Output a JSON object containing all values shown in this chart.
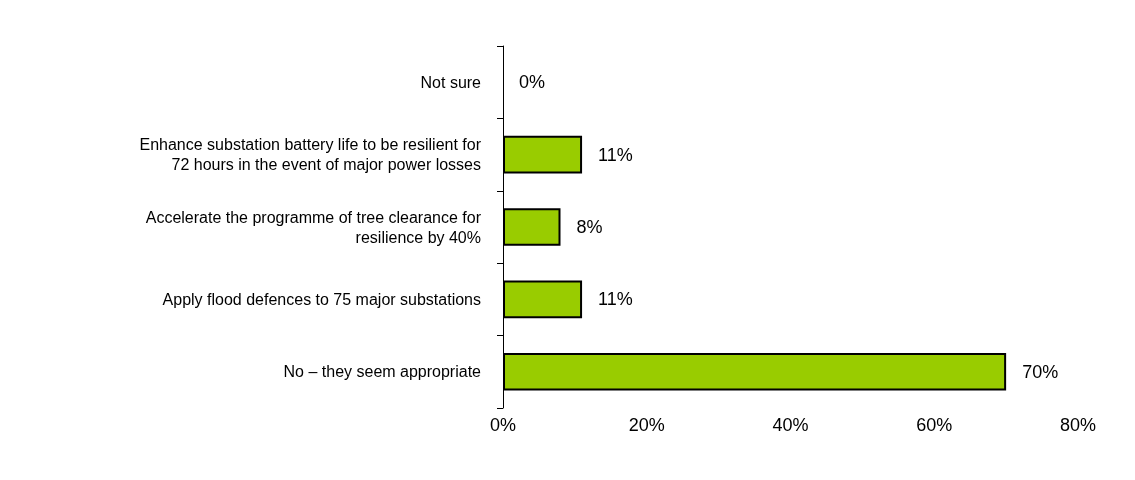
{
  "chart_data": {
    "type": "bar",
    "orientation": "horizontal",
    "categories": [
      "Not sure",
      "Enhance substation battery life to be resilient for\n72 hours in the event of major power losses",
      "Accelerate the programme of tree clearance for\nresilience by 40%",
      "Apply flood defences to 75 major substations",
      "No – they seem appropriate"
    ],
    "values": [
      0,
      11,
      8,
      11,
      70
    ],
    "value_labels": [
      "0%",
      "11%",
      "8%",
      "11%",
      "70%"
    ],
    "color": "#99cc00",
    "xlim": [
      0,
      80
    ],
    "xticks": [
      {
        "value": 0,
        "label": "0%"
      },
      {
        "value": 20,
        "label": "20%"
      },
      {
        "value": 40,
        "label": "40%"
      },
      {
        "value": 60,
        "label": "60%"
      },
      {
        "value": 80,
        "label": "80%"
      }
    ],
    "grid": false
  }
}
